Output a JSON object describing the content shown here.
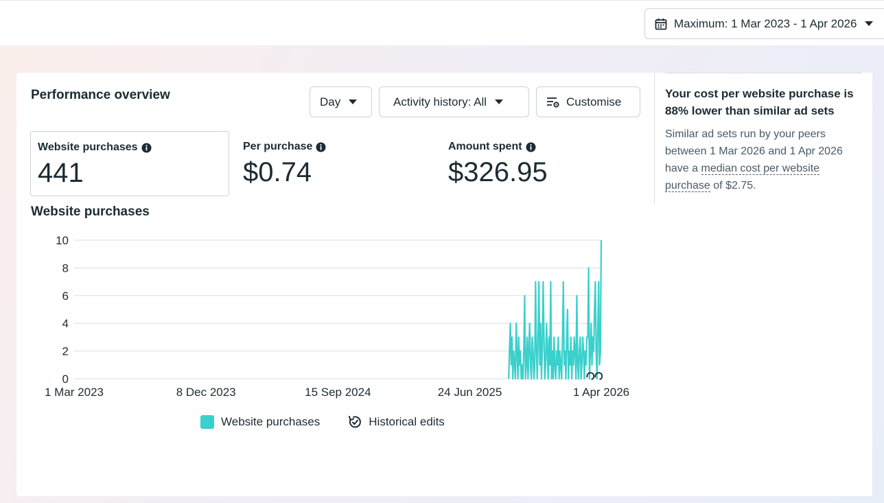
{
  "header": {
    "date_range_label": "Maximum: 1 Mar 2023 - 1 Apr 2026"
  },
  "performance": {
    "title": "Performance overview",
    "controls": {
      "day_label": "Day",
      "activity_label": "Activity history: All",
      "customise_label": "Customise"
    },
    "metrics": [
      {
        "label": "Website purchases",
        "value": "441"
      },
      {
        "label": "Per purchase",
        "value": "$0.74"
      },
      {
        "label": "Amount spent",
        "value": "$326.95"
      }
    ],
    "chart_title": "Website purchases",
    "legend": {
      "series_label": "Website purchases",
      "historical_label": "Historical edits"
    }
  },
  "insight": {
    "headline": "Your cost per website purchase is 88% lower than similar ad sets",
    "body_start": "Similar ad sets run by your peers between 1 Mar 2026 and 1 Apr 2026 have a",
    "body_dotted": "median cost per website purchase",
    "body_end": "of $2.75."
  },
  "colors": {
    "series": "#3ad0cc",
    "grid": "#dadde1",
    "text": "#1c2b33"
  },
  "chart_data": {
    "type": "line",
    "ylim": [
      0,
      10
    ],
    "yticks": [
      0,
      2,
      4,
      6,
      8,
      10
    ],
    "xlim": [
      "2023-03-01",
      "2026-04-01"
    ],
    "xtick_labels": [
      "1 Mar 2023",
      "8 Dec 2023",
      "15 Sep 2024",
      "24 Jun 2025",
      "1 Apr 2026"
    ],
    "xtick_dates": [
      "2023-03-01",
      "2023-12-08",
      "2024-09-15",
      "2025-06-24",
      "2026-04-01"
    ],
    "series": [
      {
        "name": "Website purchases",
        "start_date": "2025-09-15",
        "values": [
          0,
          2,
          4,
          1,
          3,
          0,
          2,
          1,
          0,
          4,
          2,
          0,
          3,
          1,
          2,
          0,
          1,
          0,
          2,
          6,
          0,
          1,
          3,
          0,
          2,
          4,
          1,
          0,
          3,
          2,
          0,
          1,
          7,
          2,
          0,
          3,
          7,
          1,
          4,
          0,
          2,
          7,
          3,
          0,
          1,
          4,
          2,
          0,
          3,
          1,
          7,
          0,
          2,
          0,
          3,
          1,
          0,
          2,
          1,
          3,
          0,
          2,
          1,
          0,
          3,
          7,
          1,
          2,
          0,
          3,
          5,
          0,
          2,
          1,
          3,
          0,
          2,
          1,
          3,
          2,
          0,
          6,
          1,
          0,
          2,
          3,
          0,
          1,
          3,
          2,
          0,
          2,
          1,
          3,
          3,
          8,
          0,
          2,
          4,
          1,
          3,
          2,
          5,
          7,
          2,
          0,
          4,
          7,
          1,
          2,
          10
        ]
      }
    ]
  }
}
